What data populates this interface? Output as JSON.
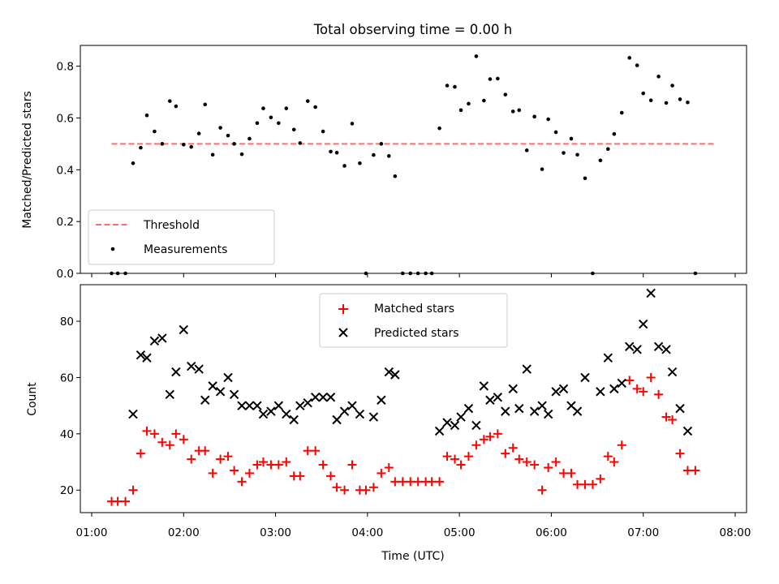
{
  "chart_data": [
    {
      "type": "scatter",
      "title": "Total observing time = 0.00 h",
      "xlabel": "",
      "ylabel": "Matched/Predicted stars",
      "ylim": [
        0,
        0.88
      ],
      "yticks": [
        "0.0",
        "0.2",
        "0.4",
        "0.6",
        "0.8"
      ],
      "legend_position": "lower-left",
      "threshold": {
        "name": "Threshold",
        "value": 0.5,
        "x_range": [
          "01:13",
          "07:47"
        ],
        "color": "#ff6e6e"
      },
      "series": [
        {
          "name": "Measurements",
          "color": "#000000",
          "points": [
            [
              "01:13",
              0.0
            ],
            [
              "01:17",
              0.0
            ],
            [
              "01:22",
              0.0
            ],
            [
              "01:27",
              0.425
            ],
            [
              "01:32",
              0.485
            ],
            [
              "01:36",
              0.61
            ],
            [
              "01:41",
              0.548
            ],
            [
              "01:46",
              0.5
            ],
            [
              "01:51",
              0.665
            ],
            [
              "01:55",
              0.645
            ],
            [
              "02:00",
              0.497
            ],
            [
              "02:05",
              0.488
            ],
            [
              "02:10",
              0.54
            ],
            [
              "02:14",
              0.652
            ],
            [
              "02:19",
              0.458
            ],
            [
              "02:24",
              0.562
            ],
            [
              "02:29",
              0.532
            ],
            [
              "02:33",
              0.5
            ],
            [
              "02:38",
              0.46
            ],
            [
              "02:43",
              0.52
            ],
            [
              "02:48",
              0.58
            ],
            [
              "02:52",
              0.637
            ],
            [
              "02:57",
              0.602
            ],
            [
              "03:02",
              0.58
            ],
            [
              "03:07",
              0.637
            ],
            [
              "03:12",
              0.555
            ],
            [
              "03:16",
              0.503
            ],
            [
              "03:21",
              0.665
            ],
            [
              "03:26",
              0.642
            ],
            [
              "03:31",
              0.548
            ],
            [
              "03:36",
              0.47
            ],
            [
              "03:40",
              0.466
            ],
            [
              "03:45",
              0.415
            ],
            [
              "03:50",
              0.578
            ],
            [
              "03:55",
              0.425
            ],
            [
              "03:59",
              0.0
            ],
            [
              "04:04",
              0.457
            ],
            [
              "04:09",
              0.5
            ],
            [
              "04:14",
              0.453
            ],
            [
              "04:18",
              0.375
            ],
            [
              "04:23",
              0.0
            ],
            [
              "04:28",
              0.0
            ],
            [
              "04:33",
              0.0
            ],
            [
              "04:38",
              0.0
            ],
            [
              "04:42",
              0.0
            ],
            [
              "04:47",
              0.56
            ],
            [
              "04:52",
              0.725
            ],
            [
              "04:57",
              0.72
            ],
            [
              "05:01",
              0.63
            ],
            [
              "05:06",
              0.655
            ],
            [
              "05:11",
              0.838
            ],
            [
              "05:16",
              0.667
            ],
            [
              "05:20",
              0.75
            ],
            [
              "05:25",
              0.752
            ],
            [
              "05:30",
              0.69
            ],
            [
              "05:35",
              0.625
            ],
            [
              "05:39",
              0.63
            ],
            [
              "05:44",
              0.475
            ],
            [
              "05:49",
              0.605
            ],
            [
              "05:54",
              0.402
            ],
            [
              "05:58",
              0.595
            ],
            [
              "06:03",
              0.545
            ],
            [
              "06:08",
              0.465
            ],
            [
              "06:13",
              0.52
            ],
            [
              "06:17",
              0.458
            ],
            [
              "06:22",
              0.367
            ],
            [
              "06:27",
              0.0
            ],
            [
              "06:32",
              0.436
            ],
            [
              "06:37",
              0.48
            ],
            [
              "06:41",
              0.538
            ],
            [
              "06:46",
              0.62
            ],
            [
              "06:51",
              0.832
            ],
            [
              "06:56",
              0.803
            ],
            [
              "07:00",
              0.695
            ],
            [
              "07:05",
              0.668
            ],
            [
              "07:10",
              0.76
            ],
            [
              "07:15",
              0.658
            ],
            [
              "07:19",
              0.725
            ],
            [
              "07:24",
              0.672
            ],
            [
              "07:29",
              0.66
            ],
            [
              "07:34",
              0.0
            ]
          ]
        }
      ]
    },
    {
      "type": "scatter",
      "title": "",
      "xlabel": "Time (UTC)",
      "ylabel": "Count",
      "ylim": [
        12,
        93
      ],
      "yticks": [
        "20",
        "40",
        "60",
        "80"
      ],
      "xticks": [
        "01:00",
        "02:00",
        "03:00",
        "04:00",
        "05:00",
        "06:00",
        "07:00",
        "08:00"
      ],
      "legend_position": "upper-center",
      "series": [
        {
          "name": "Matched stars",
          "color": "#ff0000",
          "marker": "+",
          "points": [
            [
              "01:13",
              16
            ],
            [
              "01:17",
              16
            ],
            [
              "01:22",
              16
            ],
            [
              "01:27",
              20
            ],
            [
              "01:32",
              33
            ],
            [
              "01:36",
              41
            ],
            [
              "01:41",
              40
            ],
            [
              "01:46",
              37
            ],
            [
              "01:51",
              36
            ],
            [
              "01:55",
              40
            ],
            [
              "02:00",
              38
            ],
            [
              "02:05",
              31
            ],
            [
              "02:10",
              34
            ],
            [
              "02:14",
              34
            ],
            [
              "02:19",
              26
            ],
            [
              "02:24",
              31
            ],
            [
              "02:29",
              32
            ],
            [
              "02:33",
              27
            ],
            [
              "02:38",
              23
            ],
            [
              "02:43",
              26
            ],
            [
              "02:48",
              29
            ],
            [
              "02:52",
              30
            ],
            [
              "02:57",
              29
            ],
            [
              "03:02",
              29
            ],
            [
              "03:07",
              30
            ],
            [
              "03:12",
              25
            ],
            [
              "03:16",
              25
            ],
            [
              "03:21",
              34
            ],
            [
              "03:26",
              34
            ],
            [
              "03:31",
              29
            ],
            [
              "03:36",
              25
            ],
            [
              "03:40",
              21
            ],
            [
              "03:45",
              20
            ],
            [
              "03:50",
              29
            ],
            [
              "03:55",
              20
            ],
            [
              "03:59",
              20
            ],
            [
              "04:04",
              21
            ],
            [
              "04:09",
              26
            ],
            [
              "04:14",
              28
            ],
            [
              "04:18",
              23
            ],
            [
              "04:23",
              23
            ],
            [
              "04:28",
              23
            ],
            [
              "04:33",
              23
            ],
            [
              "04:38",
              23
            ],
            [
              "04:42",
              23
            ],
            [
              "04:47",
              23
            ],
            [
              "04:52",
              32
            ],
            [
              "04:57",
              31
            ],
            [
              "05:01",
              29
            ],
            [
              "05:06",
              32
            ],
            [
              "05:11",
              36
            ],
            [
              "05:16",
              38
            ],
            [
              "05:20",
              39
            ],
            [
              "05:25",
              40
            ],
            [
              "05:30",
              33
            ],
            [
              "05:35",
              35
            ],
            [
              "05:39",
              31
            ],
            [
              "05:44",
              30
            ],
            [
              "05:49",
              29
            ],
            [
              "05:54",
              20
            ],
            [
              "05:58",
              28
            ],
            [
              "06:03",
              30
            ],
            [
              "06:08",
              26
            ],
            [
              "06:13",
              26
            ],
            [
              "06:17",
              22
            ],
            [
              "06:22",
              22
            ],
            [
              "06:27",
              22
            ],
            [
              "06:32",
              24
            ],
            [
              "06:37",
              32
            ],
            [
              "06:41",
              30
            ],
            [
              "06:46",
              36
            ],
            [
              "06:51",
              59
            ],
            [
              "06:56",
              56
            ],
            [
              "07:00",
              55
            ],
            [
              "07:05",
              60
            ],
            [
              "07:10",
              54
            ],
            [
              "07:15",
              46
            ],
            [
              "07:19",
              45
            ],
            [
              "07:24",
              33
            ],
            [
              "07:29",
              27
            ],
            [
              "07:34",
              27
            ]
          ]
        },
        {
          "name": "Predicted stars",
          "color": "#000000",
          "marker": "x",
          "points": [
            [
              "01:27",
              47
            ],
            [
              "01:32",
              68
            ],
            [
              "01:36",
              67
            ],
            [
              "01:41",
              73
            ],
            [
              "01:46",
              74
            ],
            [
              "01:51",
              54
            ],
            [
              "01:55",
              62
            ],
            [
              "02:00",
              77
            ],
            [
              "02:05",
              64
            ],
            [
              "02:10",
              63
            ],
            [
              "02:14",
              52
            ],
            [
              "02:19",
              57
            ],
            [
              "02:24",
              55
            ],
            [
              "02:29",
              60
            ],
            [
              "02:33",
              54
            ],
            [
              "02:38",
              50
            ],
            [
              "02:43",
              50
            ],
            [
              "02:48",
              50
            ],
            [
              "02:52",
              47
            ],
            [
              "02:57",
              48
            ],
            [
              "03:02",
              50
            ],
            [
              "03:07",
              47
            ],
            [
              "03:12",
              45
            ],
            [
              "03:16",
              50
            ],
            [
              "03:21",
              51
            ],
            [
              "03:26",
              53
            ],
            [
              "03:31",
              53
            ],
            [
              "03:36",
              53
            ],
            [
              "03:40",
              45
            ],
            [
              "03:45",
              48
            ],
            [
              "03:50",
              50
            ],
            [
              "03:55",
              47
            ],
            [
              "04:04",
              46
            ],
            [
              "04:09",
              52
            ],
            [
              "04:14",
              62
            ],
            [
              "04:18",
              61
            ],
            [
              "04:47",
              41
            ],
            [
              "04:52",
              44
            ],
            [
              "04:57",
              43
            ],
            [
              "05:01",
              46
            ],
            [
              "05:06",
              49
            ],
            [
              "05:11",
              43
            ],
            [
              "05:16",
              57
            ],
            [
              "05:20",
              52
            ],
            [
              "05:25",
              53
            ],
            [
              "05:30",
              48
            ],
            [
              "05:35",
              56
            ],
            [
              "05:39",
              49
            ],
            [
              "05:44",
              63
            ],
            [
              "05:49",
              48
            ],
            [
              "05:54",
              50
            ],
            [
              "05:58",
              47
            ],
            [
              "06:03",
              55
            ],
            [
              "06:08",
              56
            ],
            [
              "06:13",
              50
            ],
            [
              "06:17",
              48
            ],
            [
              "06:22",
              60
            ],
            [
              "06:32",
              55
            ],
            [
              "06:37",
              67
            ],
            [
              "06:41",
              56
            ],
            [
              "06:46",
              58
            ],
            [
              "06:51",
              71
            ],
            [
              "06:56",
              70
            ],
            [
              "07:00",
              79
            ],
            [
              "07:05",
              90
            ],
            [
              "07:10",
              71
            ],
            [
              "07:15",
              70
            ],
            [
              "07:19",
              62
            ],
            [
              "07:24",
              49
            ],
            [
              "07:29",
              41
            ]
          ]
        }
      ]
    }
  ]
}
